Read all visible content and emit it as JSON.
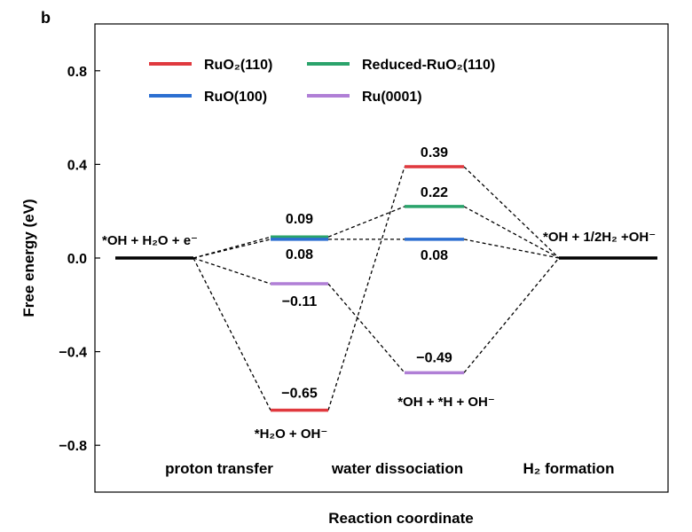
{
  "chart_data": {
    "type": "line",
    "panel_label": "b",
    "ylabel": "Free energy (eV)",
    "xlabel": "Reaction coordinate",
    "ylim": [
      -1.0,
      1.0
    ],
    "yticks": [
      -0.8,
      -0.4,
      0.0,
      0.4,
      0.8
    ],
    "ytick_labels": [
      "−0.8",
      "−0.4",
      "0.0",
      "0.4",
      "0.8"
    ],
    "grid": false,
    "legend_position": "top-left",
    "stage_labels": [
      "proton transfer",
      "water dissociation",
      "H₂ formation"
    ],
    "state_labels": {
      "initial": "*OH + H₂O + e⁻",
      "final": "*OH + 1/2H₂ +OH⁻",
      "intermediate_1": "*H₂O + OH⁻",
      "intermediate_2": "*OH + *H + OH⁻"
    },
    "level_indices": [
      0,
      1,
      2,
      3
    ],
    "series": [
      {
        "name": "RuO₂(110)",
        "color": "#e0393e",
        "values": [
          0.0,
          -0.65,
          0.39,
          0.0
        ],
        "labels": [
          "",
          "−0.65",
          "0.39",
          ""
        ]
      },
      {
        "name": "Reduced-RuO₂(110)",
        "color": "#2aa36b",
        "values": [
          0.0,
          0.09,
          0.22,
          0.0
        ],
        "labels": [
          "",
          "0.09",
          "0.22",
          ""
        ]
      },
      {
        "name": "RuO(100)",
        "color": "#2c6fd1",
        "values": [
          0.0,
          0.08,
          0.08,
          0.0
        ],
        "labels": [
          "",
          "0.08",
          "0.08",
          ""
        ]
      },
      {
        "name": "Ru(0001)",
        "color": "#b07fd6",
        "values": [
          0.0,
          -0.11,
          -0.49,
          0.0
        ],
        "labels": [
          "",
          "−0.11",
          "−0.49",
          ""
        ]
      }
    ],
    "reference_color": "#000000"
  }
}
